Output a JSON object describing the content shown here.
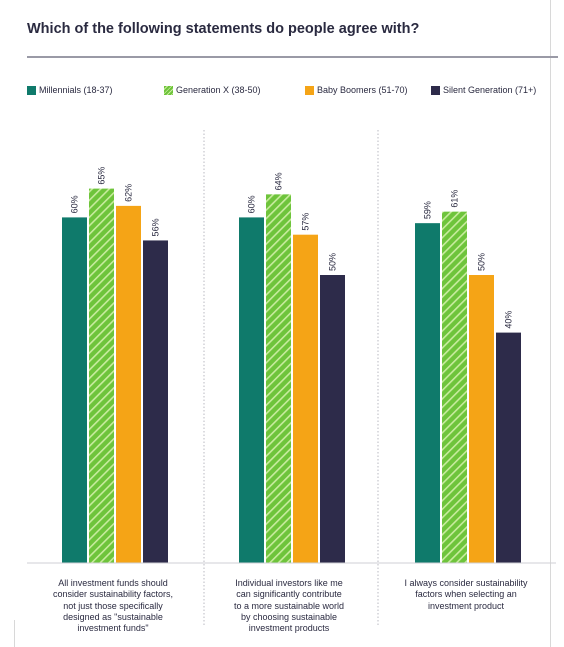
{
  "title": "Which of the following statements do people agree with?",
  "legend": [
    {
      "label": "Millennials (18-37)",
      "color": "#0f7a6b",
      "pattern": "solid"
    },
    {
      "label": "Generation X (38-50)",
      "color": "#6ec43b",
      "pattern": "hatched"
    },
    {
      "label": "Baby Boomers (51-70)",
      "color": "#f5a416",
      "pattern": "solid"
    },
    {
      "label": "Silent Generation (71+)",
      "color": "#2d2b4a",
      "pattern": "solid"
    }
  ],
  "chart_data": {
    "type": "bar",
    "categories": [
      "All investment funds should consider sustainability factors, not just those specifically designed as \"sustainable investment funds\"",
      "Individual investors like me can significantly contribute to a more sustainable world by choosing sustainable investment products",
      "I always consider sustainability factors when selecting an investment product"
    ],
    "category_lines": [
      [
        "All investment funds should",
        "consider sustainability factors,",
        "not just those specifically",
        "designed as \"sustainable",
        "investment funds\""
      ],
      [
        "Individual investors like me",
        "can significantly contribute",
        "to a more sustainable world",
        "by choosing sustainable",
        "investment products"
      ],
      [
        "I always consider sustainability",
        "factors when selecting an",
        "investment product"
      ]
    ],
    "series": [
      {
        "name": "Millennials (18-37)",
        "values": [
          60,
          60,
          59
        ],
        "labels": [
          "60%",
          "60%",
          "59%"
        ]
      },
      {
        "name": "Generation X (38-50)",
        "values": [
          65,
          64,
          61
        ],
        "labels": [
          "65%",
          "64%",
          "61%"
        ]
      },
      {
        "name": "Baby Boomers (51-70)",
        "values": [
          62,
          57,
          50
        ],
        "labels": [
          "62%",
          "57%",
          "50%"
        ]
      },
      {
        "name": "Silent Generation (71+)",
        "values": [
          56,
          50,
          40
        ],
        "labels": [
          "56%",
          "50%",
          "40%"
        ]
      }
    ],
    "ylim": [
      0,
      100
    ],
    "xlabel": "",
    "ylabel": "",
    "grid": false,
    "legend_position": "top-left"
  }
}
